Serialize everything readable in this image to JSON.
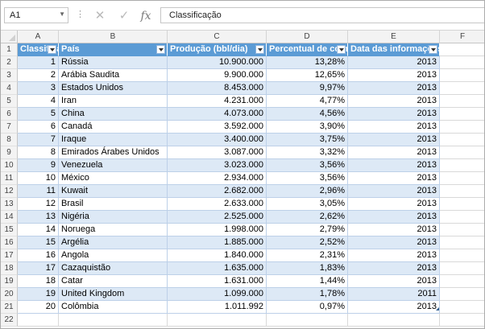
{
  "formula_bar": {
    "name_box": "A1",
    "content": "Classificação",
    "cancel_icon": "✕",
    "enter_icon": "✓",
    "fx_icon": "fx"
  },
  "columns": [
    "A",
    "B",
    "C",
    "D",
    "E",
    "F"
  ],
  "row_numbers": [
    "1",
    "2",
    "3",
    "4",
    "5",
    "6",
    "7",
    "8",
    "9",
    "10",
    "11",
    "12",
    "13",
    "14",
    "15",
    "16",
    "17",
    "18",
    "19",
    "20",
    "21",
    "22"
  ],
  "table": {
    "headers": [
      "Classificação",
      "País",
      "Produção (bbl/dia)",
      "Percentual de com",
      "Data das informações"
    ],
    "rows": [
      [
        "1",
        "Rússia",
        "10.900.000",
        "13,28%",
        "2013"
      ],
      [
        "2",
        "Arábia Saudita",
        "9.900.000",
        "12,65%",
        "2013"
      ],
      [
        "3",
        "Estados Unidos",
        "8.453.000",
        "9,97%",
        "2013"
      ],
      [
        "4",
        "Iran",
        "4.231.000",
        "4,77%",
        "2013"
      ],
      [
        "5",
        "China",
        "4.073.000",
        "4,56%",
        "2013"
      ],
      [
        "6",
        "Canadá",
        "3.592.000",
        "3,90%",
        "2013"
      ],
      [
        "7",
        "Iraque",
        "3.400.000",
        "3,75%",
        "2013"
      ],
      [
        "8",
        "Emirados Árabes Unidos",
        "3.087.000",
        "3,32%",
        "2013"
      ],
      [
        "9",
        "Venezuela",
        "3.023.000",
        "3,56%",
        "2013"
      ],
      [
        "10",
        "México",
        "2.934.000",
        "3,56%",
        "2013"
      ],
      [
        "11",
        "Kuwait",
        "2.682.000",
        "2,96%",
        "2013"
      ],
      [
        "12",
        "Brasil",
        "2.633.000",
        "3,05%",
        "2013"
      ],
      [
        "13",
        "Nigéria",
        "2.525.000",
        "2,62%",
        "2013"
      ],
      [
        "14",
        "Noruega",
        "1.998.000",
        "2,79%",
        "2013"
      ],
      [
        "15",
        "Argélia",
        "1.885.000",
        "2,52%",
        "2013"
      ],
      [
        "16",
        "Angola",
        "1.840.000",
        "2,31%",
        "2013"
      ],
      [
        "17",
        "Cazaquistão",
        "1.635.000",
        "1,83%",
        "2013"
      ],
      [
        "18",
        "Catar",
        "1.631.000",
        "1,44%",
        "2013"
      ],
      [
        "19",
        "United Kingdom",
        "1.099.000",
        "1,78%",
        "2011"
      ],
      [
        "20",
        "Colômbia",
        "1.011.992",
        "0,97%",
        "2013"
      ]
    ]
  },
  "colors": {
    "header": "#5b9bd5",
    "band": "#dde9f6"
  }
}
